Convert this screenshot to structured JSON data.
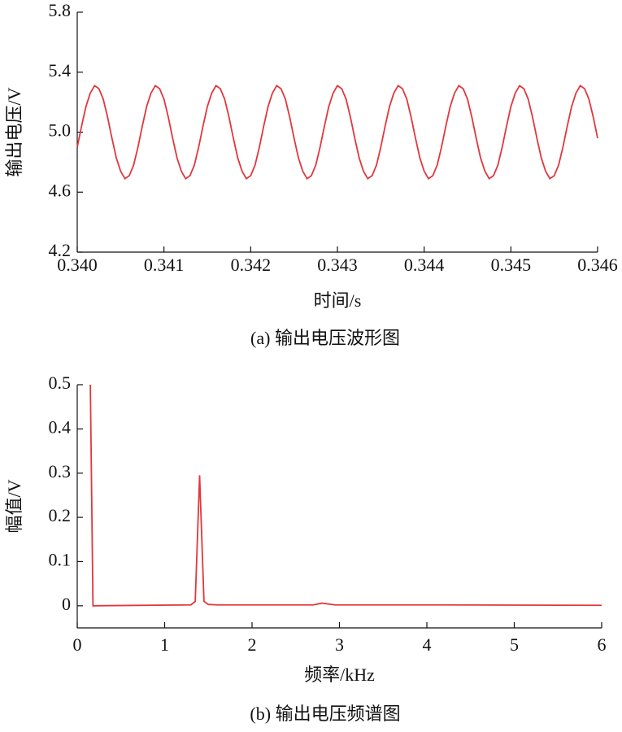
{
  "chart_data": [
    {
      "type": "line",
      "caption": "(a) 输出电压波形图",
      "x_label": "时间/s",
      "y_label": "输出电压/V",
      "xlim": [
        0.34,
        0.346
      ],
      "ylim": [
        4.2,
        5.8
      ],
      "xticks": [
        {
          "value": 0.34,
          "label": "0.340"
        },
        0.341,
        0.342,
        0.343,
        0.344,
        0.345,
        0.346
      ],
      "yticks": [
        4.2,
        4.6,
        {
          "value": 5,
          "label": "5.0"
        },
        5.4,
        5.8
      ],
      "series": [
        {
          "color": "#e2363c",
          "x": [
            0.34,
            0.34005,
            0.3401,
            0.34015,
            0.3402,
            0.34025,
            0.3403,
            0.34035,
            0.3404,
            0.34045,
            0.3405,
            0.34055,
            0.3406,
            0.34065,
            0.3407,
            0.34075,
            0.3408,
            0.34085,
            0.3409,
            0.34095,
            0.341,
            0.34105,
            0.3411,
            0.34115,
            0.3412,
            0.34125,
            0.3413,
            0.34135,
            0.3414,
            0.34145,
            0.3415,
            0.34155,
            0.3416,
            0.34165,
            0.3417,
            0.34175,
            0.3418,
            0.34185,
            0.3419,
            0.34195,
            0.342,
            0.34205,
            0.3421,
            0.34215,
            0.3422,
            0.34225,
            0.3423,
            0.34235,
            0.3424,
            0.34245,
            0.3425,
            0.34255,
            0.3426,
            0.34265,
            0.3427,
            0.34275,
            0.3428,
            0.34285,
            0.3429,
            0.34295,
            0.343,
            0.34305,
            0.3431,
            0.34315,
            0.3432,
            0.34325,
            0.3433,
            0.34335,
            0.3434,
            0.34345,
            0.3435,
            0.34355,
            0.3436,
            0.34365,
            0.3437,
            0.34375,
            0.3438,
            0.34385,
            0.3439,
            0.34395,
            0.344,
            0.34405,
            0.3441,
            0.34415,
            0.3442,
            0.34425,
            0.3443,
            0.34435,
            0.3444,
            0.34445,
            0.3445,
            0.34455,
            0.3446,
            0.34465,
            0.3447,
            0.34475,
            0.3448,
            0.34485,
            0.3449,
            0.34495,
            0.345,
            0.34505,
            0.3451,
            0.34515,
            0.3452,
            0.34525,
            0.3453,
            0.34535,
            0.3454,
            0.34545,
            0.3455,
            0.34555,
            0.3456,
            0.34565,
            0.3457,
            0.34575,
            0.3458,
            0.34585,
            0.3459,
            0.34595,
            0.346
          ],
          "values": [
            4.9,
            5.04,
            5.17,
            5.26,
            5.31,
            5.29,
            5.22,
            5.1,
            4.96,
            4.83,
            4.74,
            4.69,
            4.71,
            4.78,
            4.9,
            5.04,
            5.17,
            5.26,
            5.31,
            5.29,
            5.22,
            5.1,
            4.96,
            4.83,
            4.74,
            4.69,
            4.71,
            4.78,
            4.9,
            5.04,
            5.17,
            5.26,
            5.31,
            5.29,
            5.22,
            5.1,
            4.96,
            4.83,
            4.74,
            4.69,
            4.71,
            4.78,
            4.9,
            5.04,
            5.17,
            5.26,
            5.31,
            5.29,
            5.22,
            5.1,
            4.96,
            4.83,
            4.74,
            4.69,
            4.71,
            4.78,
            4.9,
            5.04,
            5.17,
            5.26,
            5.31,
            5.29,
            5.22,
            5.1,
            4.96,
            4.83,
            4.74,
            4.69,
            4.71,
            4.78,
            4.9,
            5.04,
            5.17,
            5.26,
            5.31,
            5.29,
            5.22,
            5.1,
            4.96,
            4.83,
            4.74,
            4.69,
            4.71,
            4.78,
            4.9,
            5.04,
            5.17,
            5.26,
            5.31,
            5.29,
            5.22,
            5.1,
            4.96,
            4.83,
            4.74,
            4.69,
            4.71,
            4.78,
            4.9,
            5.04,
            5.17,
            5.26,
            5.31,
            5.29,
            5.22,
            5.1,
            4.96,
            4.83,
            4.74,
            4.69,
            4.71,
            4.78,
            4.9,
            5.04,
            5.17,
            5.26,
            5.31,
            5.29,
            5.22,
            5.1,
            4.96
          ]
        }
      ]
    },
    {
      "type": "line",
      "caption": "(b) 输出电压频谱图",
      "x_label": "频率/kHz",
      "y_label": "幅值/V",
      "xlim": [
        0,
        6
      ],
      "ylim": [
        -0.05,
        0.5
      ],
      "xticks": [
        0,
        1,
        2,
        3,
        4,
        5,
        6
      ],
      "yticks": [
        0,
        0.1,
        0.2,
        0.3,
        0.4,
        0.5
      ],
      "series": [
        {
          "color": "#e2363c",
          "x": [
            0.15,
            0.18,
            1.3,
            1.35,
            1.4,
            1.45,
            1.5,
            1.6,
            2.7,
            2.8,
            2.95,
            4.2,
            6
          ],
          "values": [
            0.5,
            0,
            0.002,
            0.01,
            0.295,
            0.01,
            0.003,
            0.002,
            0.002,
            0.006,
            0.002,
            0.002,
            0.001
          ]
        }
      ]
    }
  ]
}
